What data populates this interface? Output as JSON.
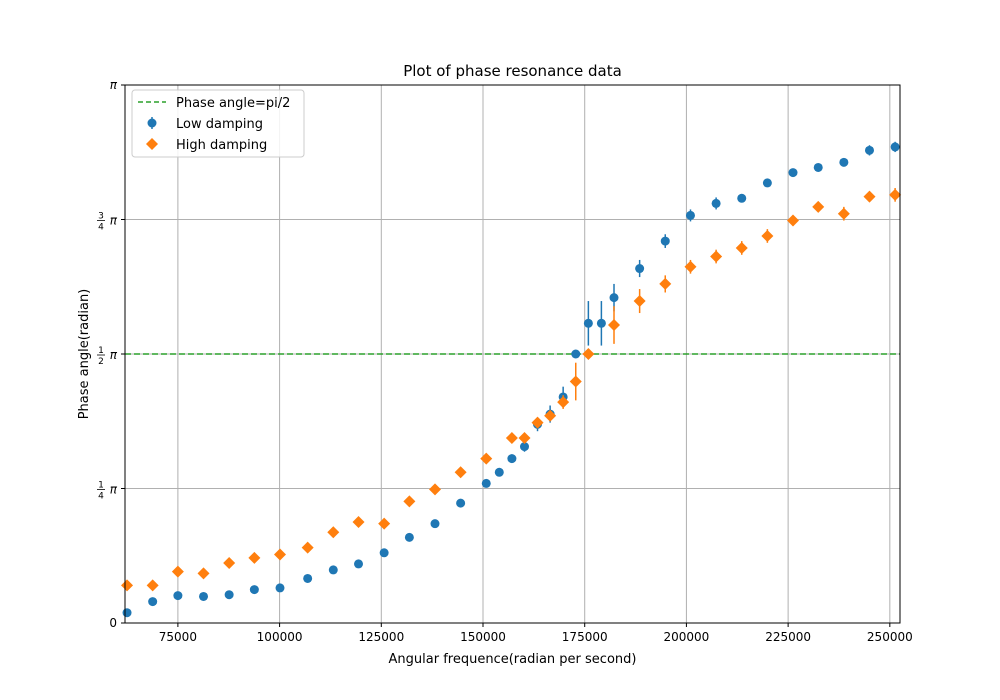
{
  "chart_data": {
    "type": "scatter",
    "title": "Plot of phase resonance data",
    "xlabel": "Angular frequence(radian per second)",
    "ylabel": "Phase angle(radian)",
    "xlim": [
      62000,
      252500
    ],
    "ylim": [
      0,
      3.14159
    ],
    "x_ticks": [
      75000,
      100000,
      125000,
      150000,
      175000,
      200000,
      225000,
      250000
    ],
    "x_tick_labels": [
      "75000",
      "100000",
      "125000",
      "150000",
      "175000",
      "200000",
      "225000",
      "250000"
    ],
    "y_ticks": [
      0,
      0.7854,
      1.5708,
      2.3562,
      3.14159
    ],
    "y_tick_labels": [
      {
        "whole": "0"
      },
      {
        "num": "1",
        "den": "4",
        "sym": "π"
      },
      {
        "num": "1",
        "den": "2",
        "sym": "π"
      },
      {
        "num": "3",
        "den": "4",
        "sym": "π"
      },
      {
        "whole": "π"
      }
    ],
    "grid": true,
    "legend_position": "upper-left",
    "reference_line": {
      "label": "Phase angle=pi/2",
      "y": 1.5708,
      "color": "#2ca02c",
      "style": "dashed"
    },
    "series": [
      {
        "name": "Low damping",
        "marker": "circle",
        "color": "#1f77b4",
        "points": [
          {
            "x": 62500,
            "y": 0.06,
            "err": 0.02
          },
          {
            "x": 68800,
            "y": 0.125,
            "err": 0.02
          },
          {
            "x": 75000,
            "y": 0.16,
            "err": 0.02
          },
          {
            "x": 81300,
            "y": 0.155,
            "err": 0.02
          },
          {
            "x": 87600,
            "y": 0.165,
            "err": 0.02
          },
          {
            "x": 93800,
            "y": 0.195,
            "err": 0.02
          },
          {
            "x": 100100,
            "y": 0.205,
            "err": 0.02
          },
          {
            "x": 106900,
            "y": 0.26,
            "err": 0.02
          },
          {
            "x": 113200,
            "y": 0.31,
            "err": 0.02
          },
          {
            "x": 119400,
            "y": 0.345,
            "err": 0.02
          },
          {
            "x": 125700,
            "y": 0.41,
            "err": 0.02
          },
          {
            "x": 131900,
            "y": 0.5,
            "err": 0.02
          },
          {
            "x": 138200,
            "y": 0.58,
            "err": 0.02
          },
          {
            "x": 144500,
            "y": 0.7,
            "err": 0.02
          },
          {
            "x": 150800,
            "y": 0.815,
            "err": 0.02
          },
          {
            "x": 154000,
            "y": 0.88,
            "err": 0.02
          },
          {
            "x": 157100,
            "y": 0.96,
            "err": 0.025
          },
          {
            "x": 160200,
            "y": 1.03,
            "err": 0.03
          },
          {
            "x": 163400,
            "y": 1.16,
            "err": 0.04
          },
          {
            "x": 166500,
            "y": 1.22,
            "err": 0.05
          },
          {
            "x": 169700,
            "y": 1.32,
            "err": 0.06
          },
          {
            "x": 172800,
            "y": 1.5708,
            "err": 0.02
          },
          {
            "x": 175900,
            "y": 1.75,
            "err": 0.13
          },
          {
            "x": 179100,
            "y": 1.75,
            "err": 0.13
          },
          {
            "x": 182200,
            "y": 1.9,
            "err": 0.08
          },
          {
            "x": 188500,
            "y": 2.07,
            "err": 0.05
          },
          {
            "x": 194800,
            "y": 2.23,
            "err": 0.04
          },
          {
            "x": 201000,
            "y": 2.38,
            "err": 0.035
          },
          {
            "x": 207300,
            "y": 2.45,
            "err": 0.035
          },
          {
            "x": 213600,
            "y": 2.48,
            "err": 0.02
          },
          {
            "x": 219900,
            "y": 2.57,
            "err": 0.02
          },
          {
            "x": 226200,
            "y": 2.63,
            "err": 0.02
          },
          {
            "x": 232400,
            "y": 2.66,
            "err": 0.02
          },
          {
            "x": 238700,
            "y": 2.69,
            "err": 0.02
          },
          {
            "x": 245000,
            "y": 2.76,
            "err": 0.03
          },
          {
            "x": 251300,
            "y": 2.78,
            "err": 0.03
          }
        ]
      },
      {
        "name": "High damping",
        "marker": "diamond",
        "color": "#ff7f0e",
        "points": [
          {
            "x": 62500,
            "y": 0.22,
            "err": 0.02
          },
          {
            "x": 68800,
            "y": 0.22,
            "err": 0.02
          },
          {
            "x": 75000,
            "y": 0.3,
            "err": 0.02
          },
          {
            "x": 81300,
            "y": 0.29,
            "err": 0.02
          },
          {
            "x": 87600,
            "y": 0.35,
            "err": 0.02
          },
          {
            "x": 93800,
            "y": 0.38,
            "err": 0.02
          },
          {
            "x": 100100,
            "y": 0.4,
            "err": 0.02
          },
          {
            "x": 106900,
            "y": 0.44,
            "err": 0.02
          },
          {
            "x": 113200,
            "y": 0.53,
            "err": 0.02
          },
          {
            "x": 119400,
            "y": 0.59,
            "err": 0.02
          },
          {
            "x": 125700,
            "y": 0.58,
            "err": 0.02
          },
          {
            "x": 131900,
            "y": 0.71,
            "err": 0.02
          },
          {
            "x": 138200,
            "y": 0.78,
            "err": 0.02
          },
          {
            "x": 144500,
            "y": 0.88,
            "err": 0.02
          },
          {
            "x": 150800,
            "y": 0.96,
            "err": 0.02
          },
          {
            "x": 157100,
            "y": 1.08,
            "err": 0.02
          },
          {
            "x": 160200,
            "y": 1.08,
            "err": 0.02
          },
          {
            "x": 163400,
            "y": 1.17,
            "err": 0.03
          },
          {
            "x": 166500,
            "y": 1.21,
            "err": 0.03
          },
          {
            "x": 169700,
            "y": 1.29,
            "err": 0.04
          },
          {
            "x": 172800,
            "y": 1.41,
            "err": 0.11
          },
          {
            "x": 175900,
            "y": 1.5708,
            "err": 0.02
          },
          {
            "x": 182200,
            "y": 1.74,
            "err": 0.11
          },
          {
            "x": 188500,
            "y": 1.88,
            "err": 0.07
          },
          {
            "x": 194800,
            "y": 1.98,
            "err": 0.05
          },
          {
            "x": 201000,
            "y": 2.08,
            "err": 0.04
          },
          {
            "x": 207300,
            "y": 2.14,
            "err": 0.04
          },
          {
            "x": 213600,
            "y": 2.19,
            "err": 0.04
          },
          {
            "x": 219900,
            "y": 2.26,
            "err": 0.04
          },
          {
            "x": 226200,
            "y": 2.35,
            "err": 0.03
          },
          {
            "x": 232400,
            "y": 2.43,
            "err": 0.03
          },
          {
            "x": 238700,
            "y": 2.39,
            "err": 0.04
          },
          {
            "x": 245000,
            "y": 2.49,
            "err": 0.03
          },
          {
            "x": 251300,
            "y": 2.5,
            "err": 0.04
          }
        ]
      }
    ]
  }
}
